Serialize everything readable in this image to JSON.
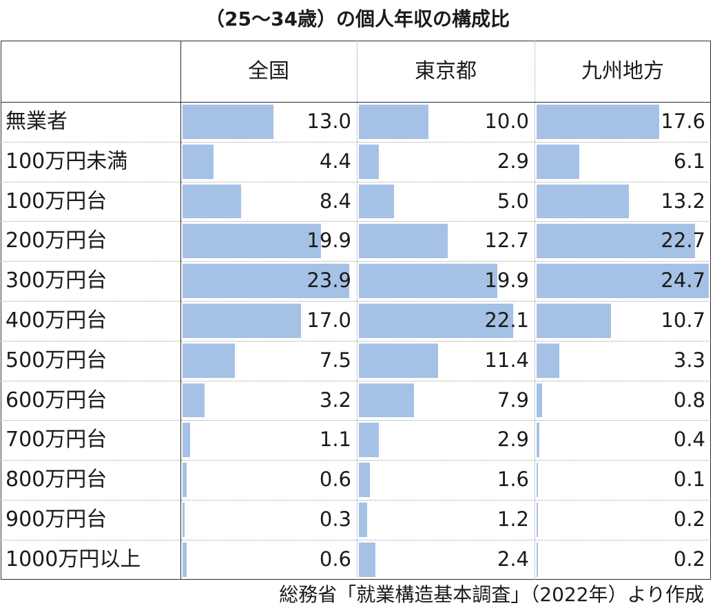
{
  "title": "（25〜34歳）の個人年収の構成比",
  "footnote": "総務省「就業構造基本調査」（2022年）より作成",
  "chart_data": {
    "type": "table",
    "columns": [
      "全国",
      "東京都",
      "九州地方"
    ],
    "categories": [
      "無業者",
      "100万円未満",
      "100万円台",
      "200万円台",
      "300万円台",
      "400万円台",
      "500万円台",
      "600万円台",
      "700万円台",
      "800万円台",
      "900万円台",
      "1000万円以上"
    ],
    "series": [
      {
        "name": "全国",
        "values": [
          13.0,
          4.4,
          8.4,
          19.9,
          23.9,
          17.0,
          7.5,
          3.2,
          1.1,
          0.6,
          0.3,
          0.6
        ],
        "labels": [
          "13.0",
          "4.4",
          "8.4",
          "19.9",
          "23.9",
          "17.0",
          "7.5",
          "3.2",
          "1.1",
          "0.6",
          "0.3",
          "0.6"
        ]
      },
      {
        "name": "東京都",
        "values": [
          10.0,
          2.9,
          5.0,
          12.7,
          19.9,
          22.1,
          11.4,
          7.9,
          2.9,
          1.6,
          1.2,
          2.4
        ],
        "labels": [
          "10.0",
          "2.9",
          "5.0",
          "12.7",
          "19.9",
          "22.1",
          "11.4",
          "7.9",
          "2.9",
          "1.6",
          "1.2",
          "2.4"
        ]
      },
      {
        "name": "九州地方",
        "values": [
          17.6,
          6.1,
          13.2,
          22.7,
          24.7,
          10.7,
          3.3,
          0.8,
          0.4,
          0.1,
          0.2,
          0.2
        ],
        "labels": [
          "17.6",
          "6.1",
          "13.2",
          "22.7",
          "24.7",
          "10.7",
          "3.3",
          "0.8",
          "0.4",
          "0.1",
          "0.2",
          "0.2"
        ]
      }
    ],
    "bar_color": "#a6c1e6",
    "max_value": 24.7
  }
}
